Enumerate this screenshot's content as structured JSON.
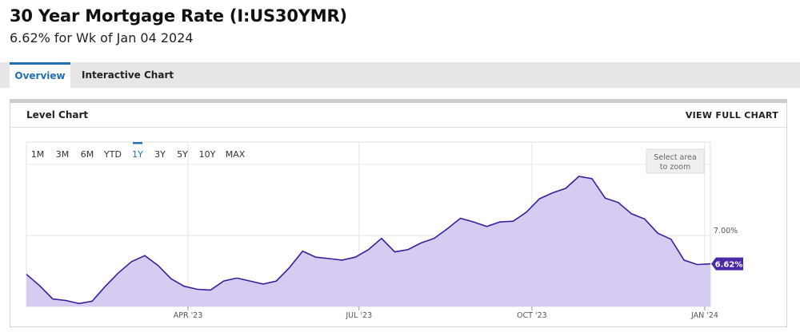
{
  "header": {
    "title": "30 Year Mortgage Rate (I:US30YMR)",
    "subtitle": "6.62% for Wk of Jan 04 2024"
  },
  "tabs": [
    {
      "label": "Overview",
      "active": true
    },
    {
      "label": "Interactive Chart",
      "active": false
    }
  ],
  "panel": {
    "title": "Level Chart",
    "view_full_label": "VIEW FULL CHART"
  },
  "zoom_hint": {
    "line1": "Select area",
    "line2": "to zoom"
  },
  "ranges": [
    {
      "label": "1M",
      "active": false
    },
    {
      "label": "3M",
      "active": false
    },
    {
      "label": "6M",
      "active": false
    },
    {
      "label": "YTD",
      "active": false
    },
    {
      "label": "1Y",
      "active": true
    },
    {
      "label": "3Y",
      "active": false
    },
    {
      "label": "5Y",
      "active": false
    },
    {
      "label": "10Y",
      "active": false
    },
    {
      "label": "MAX",
      "active": false
    }
  ],
  "colors": {
    "accent": "#1f6fb5",
    "series_line": "#3a1e9e",
    "series_fill": "#d6cbf0",
    "last_value_badge": "#4b2aa8"
  },
  "chart_data": {
    "type": "area",
    "x_tick_labels": [
      "APR '23",
      "JUL '23",
      "OCT '23",
      "JAN '24"
    ],
    "x_tick_dates": [
      "2023-04-01",
      "2023-07-01",
      "2023-10-01",
      "2024-01-01"
    ],
    "x_range": [
      "2023-01-05",
      "2024-01-04"
    ],
    "y_tick_labels": [
      "7.00%"
    ],
    "y_tick_values": [
      7.0
    ],
    "ylim": [
      6.05,
      7.95
    ],
    "last_value_label": "6.62%",
    "grid": true,
    "x": [
      "2023-01-05",
      "2023-01-12",
      "2023-01-19",
      "2023-01-26",
      "2023-02-02",
      "2023-02-09",
      "2023-02-16",
      "2023-02-23",
      "2023-03-02",
      "2023-03-09",
      "2023-03-16",
      "2023-03-23",
      "2023-03-30",
      "2023-04-06",
      "2023-04-13",
      "2023-04-20",
      "2023-04-27",
      "2023-05-04",
      "2023-05-11",
      "2023-05-18",
      "2023-05-25",
      "2023-06-01",
      "2023-06-08",
      "2023-06-15",
      "2023-06-22",
      "2023-06-29",
      "2023-07-06",
      "2023-07-13",
      "2023-07-20",
      "2023-07-27",
      "2023-08-03",
      "2023-08-10",
      "2023-08-17",
      "2023-08-24",
      "2023-08-31",
      "2023-09-07",
      "2023-09-14",
      "2023-09-21",
      "2023-09-28",
      "2023-10-05",
      "2023-10-12",
      "2023-10-19",
      "2023-10-26",
      "2023-11-02",
      "2023-11-09",
      "2023-11-16",
      "2023-11-23",
      "2023-11-30",
      "2023-12-07",
      "2023-12-14",
      "2023-12-21",
      "2023-12-28",
      "2024-01-04"
    ],
    "values": [
      6.48,
      6.33,
      6.15,
      6.13,
      6.09,
      6.12,
      6.32,
      6.5,
      6.65,
      6.73,
      6.6,
      6.42,
      6.32,
      6.28,
      6.27,
      6.39,
      6.43,
      6.39,
      6.35,
      6.39,
      6.57,
      6.79,
      6.71,
      6.69,
      6.67,
      6.71,
      6.81,
      6.96,
      6.78,
      6.81,
      6.9,
      6.96,
      7.09,
      7.23,
      7.18,
      7.12,
      7.18,
      7.19,
      7.31,
      7.49,
      7.57,
      7.63,
      7.79,
      7.76,
      7.5,
      7.44,
      7.29,
      7.22,
      7.03,
      6.95,
      6.67,
      6.61,
      6.62
    ]
  }
}
